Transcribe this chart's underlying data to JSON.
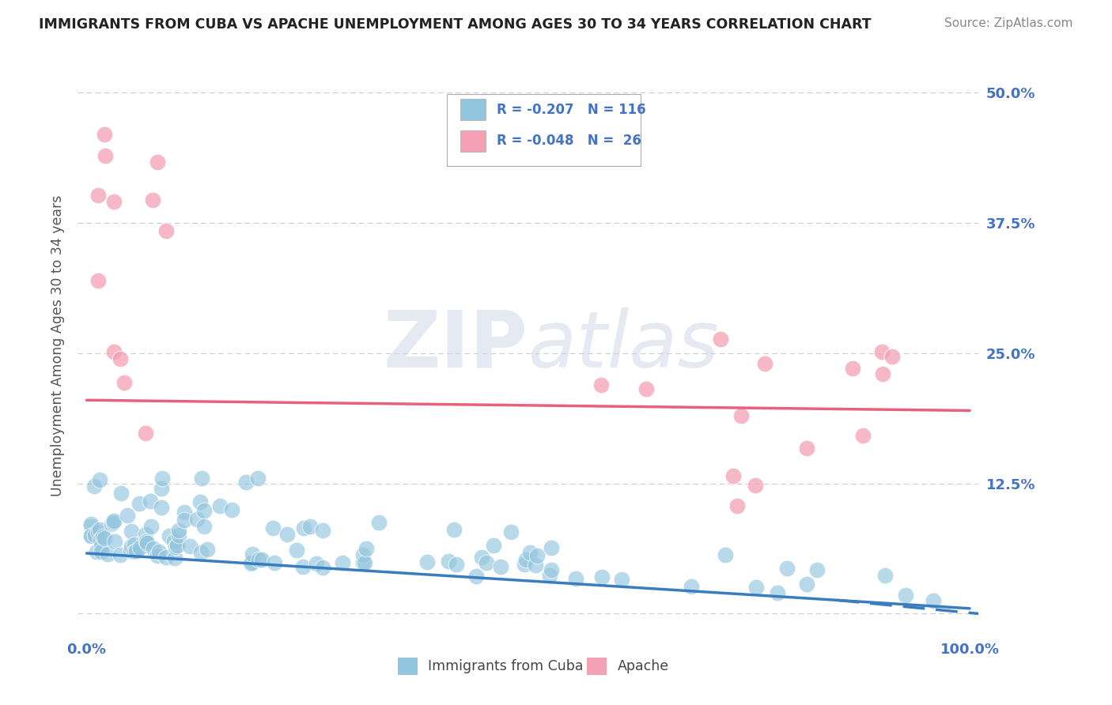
{
  "title": "IMMIGRANTS FROM CUBA VS APACHE UNEMPLOYMENT AMONG AGES 30 TO 34 YEARS CORRELATION CHART",
  "source": "Source: ZipAtlas.com",
  "ylabel": "Unemployment Among Ages 30 to 34 years",
  "y_ticks": [
    0.0,
    0.125,
    0.25,
    0.375,
    0.5
  ],
  "y_tick_labels": [
    "",
    "12.5%",
    "25.0%",
    "37.5%",
    "50.0%"
  ],
  "x_lim": [
    -0.01,
    1.01
  ],
  "y_lim": [
    -0.02,
    0.535
  ],
  "blue_color": "#92c5de",
  "pink_color": "#f4a0b5",
  "blue_line_color": "#3a7dbf",
  "pink_line_color": "#e8607a",
  "background_color": "#ffffff",
  "watermark_zip": "ZIP",
  "watermark_atlas": "atlas",
  "tick_color": "#4472c4",
  "grid_color": "#cccccc",
  "legend_label_blue": "R = -0.207",
  "legend_n_blue": "N = 116",
  "legend_label_pink": "R = -0.048",
  "legend_n_pink": "N =  26",
  "bottom_legend_blue": "Immigrants from Cuba",
  "bottom_legend_pink": "Apache",
  "cuba_line_x0": 0.0,
  "cuba_line_x1": 1.0,
  "cuba_line_y0": 0.058,
  "cuba_line_y1": 0.005,
  "apache_line_x0": 0.0,
  "apache_line_x1": 1.0,
  "apache_line_y0": 0.205,
  "apache_line_y1": 0.195
}
